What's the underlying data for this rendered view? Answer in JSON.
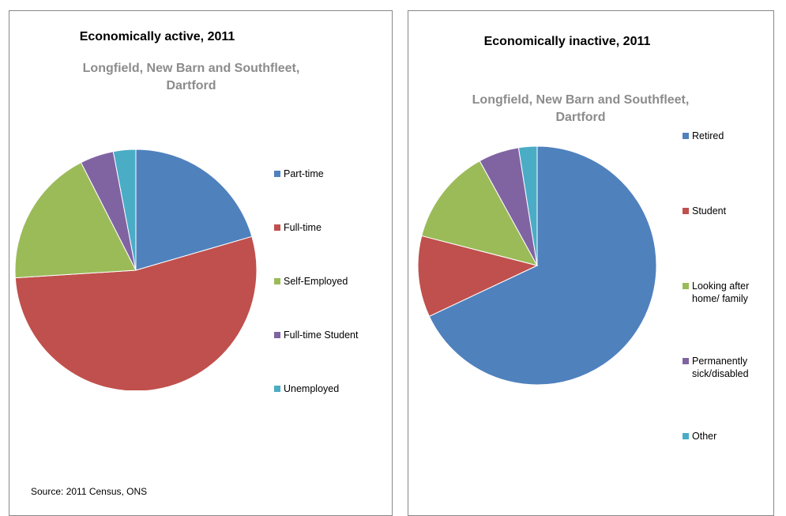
{
  "colors": {
    "blue": "#4f81bd",
    "red": "#c0504d",
    "green": "#9bbb59",
    "purple": "#8064a2",
    "cyan": "#4bacc6",
    "subtitle": "#8c8c8c"
  },
  "source": "Source: 2011 Census, ONS",
  "chart_data": [
    {
      "type": "pie",
      "title": "Economically active, 2011",
      "subtitle": "Longfield, New Barn and Southfleet, Dartford",
      "categories": [
        "Part-time",
        "Full-time",
        "Self-Employed",
        "Full-time Student",
        "Unemployed"
      ],
      "values": [
        20.5,
        53.5,
        18.5,
        4.5,
        3.0
      ],
      "colors": [
        "#4f81bd",
        "#c0504d",
        "#9bbb59",
        "#8064a2",
        "#4bacc6"
      ],
      "legend": "right"
    },
    {
      "type": "pie",
      "title": "Economically inactive, 2011",
      "subtitle": "Longfield, New Barn and Southfleet, Dartford",
      "categories": [
        "Retired",
        "Student",
        "Looking after\nhome/ family",
        "Permanently\nsick/disabled",
        "Other"
      ],
      "values": [
        68.0,
        11.0,
        13.0,
        5.5,
        2.5
      ],
      "colors": [
        "#4f81bd",
        "#c0504d",
        "#9bbb59",
        "#8064a2",
        "#4bacc6"
      ],
      "legend": "right"
    }
  ]
}
